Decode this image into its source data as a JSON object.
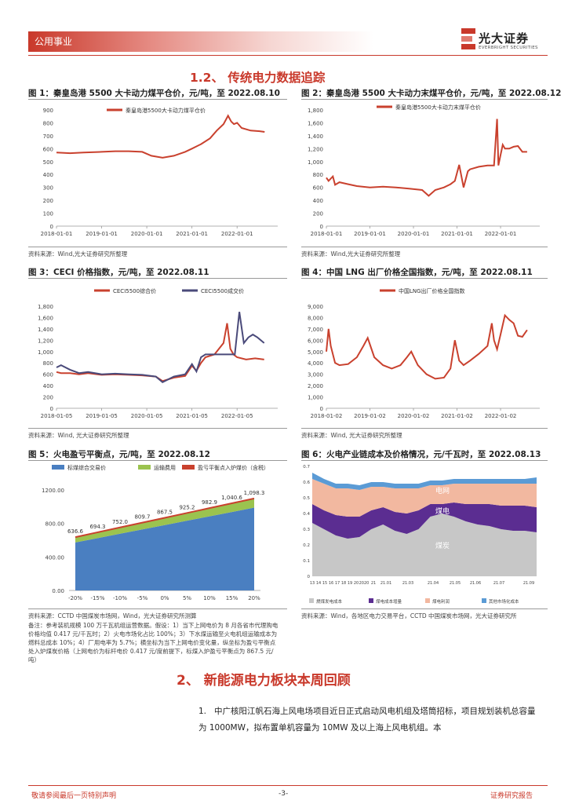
{
  "header": {
    "section_tag": "公用事业",
    "logo_cn": "光大证券",
    "logo_en": "EVERBRIGHT SECURITIES"
  },
  "section1_title": "1.2、 传统电力数据追踪",
  "fig1": {
    "title": "图 1：秦皇岛港 5500 大卡动力煤平仓价，元/吨，至 2022.08.10",
    "source": "资料来源：Wind,光大证券研究所整理",
    "chart_data": {
      "type": "line",
      "title": "",
      "xlabel": "",
      "ylabel": "",
      "ylim": [
        0,
        900
      ],
      "yticks": [
        0,
        100,
        200,
        300,
        400,
        500,
        600,
        700,
        800,
        900
      ],
      "xticks": [
        "2018-01-01",
        "2019-01-01",
        "2020-01-01",
        "2021-01-01",
        "2022-01-01"
      ],
      "series": [
        {
          "name": "秦皇岛港5500大卡动力煤平仓价",
          "color": "#c9412e",
          "x": [
            2018.0,
            2018.3,
            2018.6,
            2019.0,
            2019.3,
            2019.6,
            2019.9,
            2020.1,
            2020.35,
            2020.6,
            2020.85,
            2021.0,
            2021.2,
            2021.4,
            2021.55,
            2021.7,
            2021.8,
            2021.87,
            2021.93,
            2022.0,
            2022.1,
            2022.3,
            2022.5,
            2022.61
          ],
          "values": [
            570,
            565,
            570,
            575,
            580,
            580,
            575,
            545,
            530,
            545,
            575,
            600,
            635,
            680,
            740,
            790,
            855,
            810,
            790,
            800,
            760,
            740,
            735,
            730
          ]
        }
      ]
    }
  },
  "fig2": {
    "title": "图 2：秦皇岛港 5500 大卡动力末煤平仓价，元/吨，至 2022.08.12",
    "source": "资料来源：Wind,光大证券研究所整理",
    "chart_data": {
      "type": "line",
      "title": "",
      "xlabel": "",
      "ylabel": "",
      "ylim": [
        0,
        1800
      ],
      "yticks": [
        0,
        200,
        400,
        600,
        800,
        1000,
        1200,
        1400,
        1600,
        1800
      ],
      "xticks": [
        "2018-01-01",
        "2019-01-01",
        "2020-01-01",
        "2021-01-01",
        "2022-01-01"
      ],
      "series": [
        {
          "name": "秦皇岛港5500大卡动力末煤平仓价",
          "color": "#c9412e",
          "x": [
            2018.0,
            2018.05,
            2018.15,
            2018.2,
            2018.3,
            2018.5,
            2018.7,
            2019.0,
            2019.3,
            2019.6,
            2019.9,
            2020.2,
            2020.35,
            2020.5,
            2020.7,
            2020.85,
            2020.95,
            2021.05,
            2021.15,
            2021.25,
            2021.3,
            2021.5,
            2021.7,
            2021.85,
            2021.92,
            2021.95,
            2022.0,
            2022.05,
            2022.1,
            2022.2,
            2022.3,
            2022.4,
            2022.5,
            2022.61
          ],
          "values": [
            750,
            700,
            770,
            640,
            680,
            650,
            620,
            600,
            610,
            600,
            580,
            560,
            470,
            560,
            600,
            650,
            700,
            950,
            600,
            850,
            880,
            920,
            940,
            940,
            1660,
            940,
            1100,
            1260,
            1200,
            1200,
            1230,
            1240,
            1150,
            1150
          ]
        }
      ]
    }
  },
  "fig3": {
    "title": "图 3：CECI 价格指数，元/吨，至 2022.08.11",
    "source": "资料来源：Wind, 光大证券研究所整理",
    "chart_data": {
      "type": "line",
      "title": "",
      "xlabel": "",
      "ylabel": "",
      "ylim": [
        0,
        1800
      ],
      "yticks": [
        0,
        200,
        400,
        600,
        800,
        1000,
        1200,
        1400,
        1600,
        1800
      ],
      "xticks": [
        "2018-01-05",
        "2019-01-05",
        "2020-01-05",
        "2021-01-05",
        "2022-01-05"
      ],
      "series": [
        {
          "name": "CECI5500综合价",
          "color": "#c9412e",
          "x": [
            2018.0,
            2018.1,
            2018.3,
            2018.5,
            2018.7,
            2019.0,
            2019.3,
            2019.6,
            2019.9,
            2020.2,
            2020.35,
            2020.6,
            2020.85,
            2021.0,
            2021.1,
            2021.2,
            2021.3,
            2021.5,
            2021.7,
            2021.78,
            2021.85,
            2021.92,
            2022.0,
            2022.2,
            2022.4,
            2022.6
          ],
          "values": [
            640,
            620,
            620,
            600,
            620,
            590,
            600,
            590,
            580,
            560,
            480,
            540,
            570,
            750,
            660,
            800,
            900,
            950,
            1150,
            1500,
            1050,
            950,
            900,
            860,
            880,
            860
          ]
        },
        {
          "name": "CECI5500成交价",
          "color": "#4a4a7a",
          "x": [
            2018.0,
            2018.1,
            2018.3,
            2018.5,
            2018.7,
            2019.0,
            2019.3,
            2019.6,
            2019.9,
            2020.2,
            2020.35,
            2020.6,
            2020.85,
            2021.0,
            2021.1,
            2021.2,
            2021.3,
            2021.5,
            2021.7,
            2021.85,
            2021.95,
            2022.05,
            2022.15,
            2022.25,
            2022.35,
            2022.45,
            2022.6
          ],
          "values": [
            720,
            760,
            680,
            620,
            640,
            600,
            610,
            600,
            590,
            560,
            460,
            560,
            600,
            780,
            650,
            900,
            950,
            950,
            950,
            950,
            950,
            1700,
            1150,
            1250,
            1300,
            1250,
            1150
          ]
        }
      ]
    }
  },
  "fig4": {
    "title": "图 4：中国 LNG 出厂价格全国指数，元/吨，至 2022.08.11",
    "source": "资料来源：Wind, 光大证券研究所整理",
    "chart_data": {
      "type": "line",
      "title": "",
      "xlabel": "",
      "ylabel": "",
      "ylim": [
        0,
        9000
      ],
      "yticks": [
        0,
        1000,
        2000,
        3000,
        4000,
        5000,
        6000,
        7000,
        8000,
        9000
      ],
      "xticks": [
        "2018-01-02",
        "2019-01-02",
        "2020-01-02",
        "2021-01-02",
        "2022-01-02"
      ],
      "series": [
        {
          "name": "中国LNG出厂价格全国指数",
          "color": "#c9412e",
          "x": [
            2018.0,
            2018.05,
            2018.1,
            2018.2,
            2018.3,
            2018.5,
            2018.7,
            2018.85,
            2018.95,
            2019.1,
            2019.3,
            2019.5,
            2019.7,
            2019.85,
            2019.95,
            2020.1,
            2020.3,
            2020.5,
            2020.7,
            2020.85,
            2020.95,
            2021.05,
            2021.15,
            2021.3,
            2021.5,
            2021.7,
            2021.8,
            2021.85,
            2021.92,
            2022.0,
            2022.1,
            2022.2,
            2022.3,
            2022.4,
            2022.5,
            2022.61
          ],
          "values": [
            5000,
            7000,
            5500,
            4000,
            3800,
            3900,
            4500,
            5500,
            6200,
            4500,
            3800,
            3500,
            3800,
            4500,
            5000,
            3800,
            3000,
            2600,
            2700,
            3500,
            6000,
            4200,
            3800,
            4200,
            4800,
            5500,
            7500,
            6000,
            5200,
            6500,
            8200,
            7800,
            7500,
            6400,
            6300,
            6900
          ]
        }
      ]
    }
  },
  "fig5": {
    "title": "图 5：火电盈亏平衡点，元/吨，至 2022.08.12",
    "source": "资料来源：CCTD 中国煤炭市场网，Wind，光大证券研究所测算",
    "note": "备注：参考装机规模 100 万千瓦机组运营数据。假设：1）当下上网电价为 8 月各省市代理购电价格均值 0.417 元/千瓦时；2）火电市场化占比 100%；3）下水煤运输至火电机组运输成本为燃料总成本 10%；4）厂用电率为 5.7%；横坐标为当下上网电价变化量，纵坐标为盈亏平衡点处入炉煤炭价格（上网电价为标杆电价 0.417 元/度前提下，标煤入炉盈亏平衡点为 867.5 元/吨）",
    "chart_data": {
      "type": "area",
      "title": "",
      "xlabel": "",
      "ylabel": "",
      "ylim": [
        0,
        1200
      ],
      "yticks": [
        "0.00",
        "400.00",
        "800.00",
        "1200.00"
      ],
      "categories": [
        "-20%",
        "-15%",
        "-10%",
        "-5%",
        "0%",
        "5%",
        "10%",
        "15%",
        "20%"
      ],
      "series": [
        {
          "name": "标煤综合交易价",
          "color": "#4a7fc1",
          "values": [
            572.7,
            624.9,
            676.8,
            728.7,
            780.7,
            832.7,
            884.6,
            936.6,
            988.5
          ]
        },
        {
          "name": "运输费用",
          "color": "#9bc34f",
          "values": [
            63.6,
            69.4,
            75.2,
            81.0,
            86.8,
            92.5,
            98.3,
            104.1,
            109.8
          ]
        },
        {
          "name": "盈亏平衡点入炉煤价（含税）",
          "color": "#c9412e",
          "values": [
            636.6,
            694.3,
            752.0,
            809.7,
            867.5,
            925.2,
            982.9,
            1040.6,
            1098.3
          ]
        }
      ],
      "data_labels": [
        "636.6",
        "694.3",
        "752.0",
        "809.7",
        "867.5",
        "925.2",
        "982.9",
        "1,040.6",
        "1,098.3"
      ]
    }
  },
  "fig6": {
    "title": "图 6：火电产业链成本及价格情况，元/千瓦时，至 2022.08.13",
    "source": "资料来源：Wind，各地区电力交易平台，CCTD 中国煤炭市场网，光大证券研究所",
    "chart_data": {
      "type": "area",
      "title": "",
      "xlabel": "",
      "ylabel": "",
      "ylim": [
        0,
        0.7
      ],
      "yticks": [
        "0",
        "0.1",
        "0.2",
        "0.3",
        "0.4",
        "0.5",
        "0.6",
        "0.7"
      ],
      "xticks": [
        "13",
        "14",
        "15",
        "16",
        "17",
        "18",
        "19",
        "20",
        "2020",
        "21",
        "21.01",
        "21.03",
        "21.04",
        "21.05",
        "21.06",
        "21.07",
        "21.09"
      ],
      "series": [
        {
          "name": "燃煤发电成本",
          "color": "#c7c7c7",
          "values": [
            0.34,
            0.3,
            0.26,
            0.24,
            0.25,
            0.3,
            0.33,
            0.29,
            0.27,
            0.3,
            0.38,
            0.4,
            0.38,
            0.35,
            0.33,
            0.32,
            0.3,
            0.29,
            0.29,
            0.28
          ]
        },
        {
          "name": "煤电成本增量",
          "color": "#5b2d91",
          "values": [
            0.12,
            0.12,
            0.13,
            0.14,
            0.13,
            0.12,
            0.11,
            0.12,
            0.13,
            0.12,
            0.08,
            0.06,
            0.09,
            0.11,
            0.13,
            0.14,
            0.15,
            0.16,
            0.16,
            0.16
          ]
        },
        {
          "name": "煤电利润",
          "color": "#f2b8a0",
          "values": [
            0.16,
            0.17,
            0.17,
            0.18,
            0.17,
            0.15,
            0.13,
            0.15,
            0.16,
            0.14,
            0.12,
            0.12,
            0.12,
            0.13,
            0.13,
            0.13,
            0.14,
            0.14,
            0.14,
            0.15
          ]
        },
        {
          "name": "其他市场化成本",
          "color": "#5b9bd5",
          "values": [
            0.04,
            0.03,
            0.03,
            0.03,
            0.03,
            0.03,
            0.03,
            0.03,
            0.03,
            0.03,
            0.03,
            0.03,
            0.03,
            0.03,
            0.03,
            0.03,
            0.03,
            0.03,
            0.03,
            0.04
          ]
        }
      ],
      "area_labels": [
        "电网",
        "煤电",
        "煤炭"
      ]
    }
  },
  "section2_title": "2、 新能源电力板块本周回顾",
  "paragraph": {
    "number": "1.",
    "text": "中广核阳江帆石海上风电场项目近日正式启动风电机组及塔筒招标，项目规划装机总容量为 1000MW，拟布置单机容量为 10MW 及以上海上风电机组。本"
  },
  "footer": {
    "disclaimer": "敬请参阅最后一页特别声明",
    "page": "-3-",
    "doc_type": "证券研究报告"
  }
}
